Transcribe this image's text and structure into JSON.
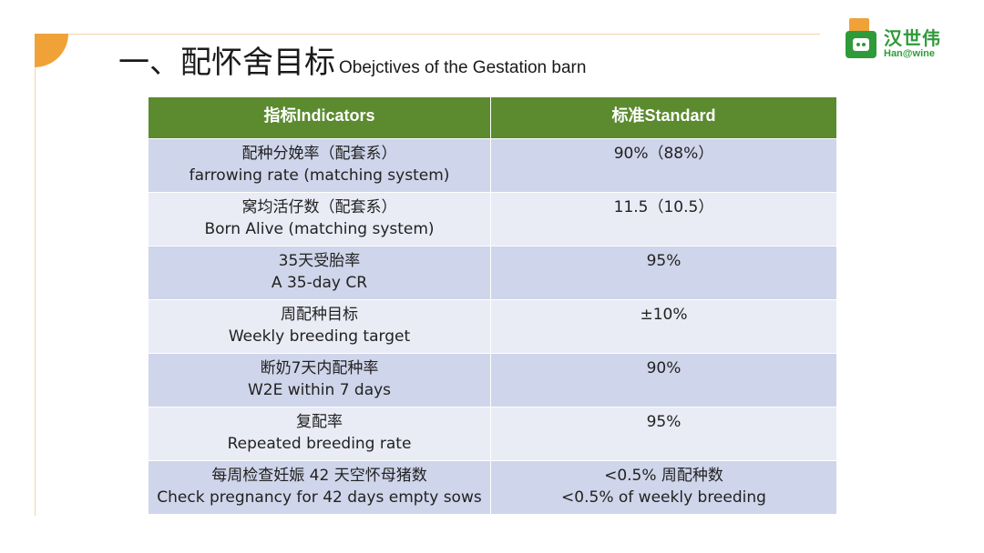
{
  "title": {
    "cn": "一、配怀舍目标",
    "en": "Obejctives of  the Gestation barn"
  },
  "logo": {
    "cn": "汉世伟",
    "en": "Han@wine",
    "colors": {
      "green": "#2f9a3a",
      "orange": "#f0a238"
    }
  },
  "table": {
    "headers": [
      "指标Indicators",
      "标准Standard"
    ],
    "header_color": "#5b8a2f",
    "rows": [
      {
        "indicator": [
          "配种分娩率（配套系）",
          "farrowing rate (matching system)"
        ],
        "standard": [
          "90%（88%）"
        ]
      },
      {
        "indicator": [
          "窝均活仔数（配套系）",
          "Born Alive (matching system)"
        ],
        "standard": [
          "11.5（10.5）"
        ]
      },
      {
        "indicator": [
          "35天受胎率",
          "A 35-day CR"
        ],
        "standard": [
          "95%"
        ]
      },
      {
        "indicator": [
          "周配种目标",
          "Weekly breeding target"
        ],
        "standard": [
          "±10%"
        ]
      },
      {
        "indicator": [
          "断奶7天内配种率",
          "W2E within 7 days"
        ],
        "standard": [
          "90%"
        ]
      },
      {
        "indicator": [
          "复配率",
          "Repeated breeding rate"
        ],
        "standard": [
          "95%"
        ]
      },
      {
        "indicator": [
          "每周检查妊娠 42 天空怀母猪数",
          "Check pregnancy for 42 days empty sows"
        ],
        "standard": [
          "<0.5% 周配种数",
          "<0.5% of weekly breeding"
        ]
      }
    ]
  }
}
